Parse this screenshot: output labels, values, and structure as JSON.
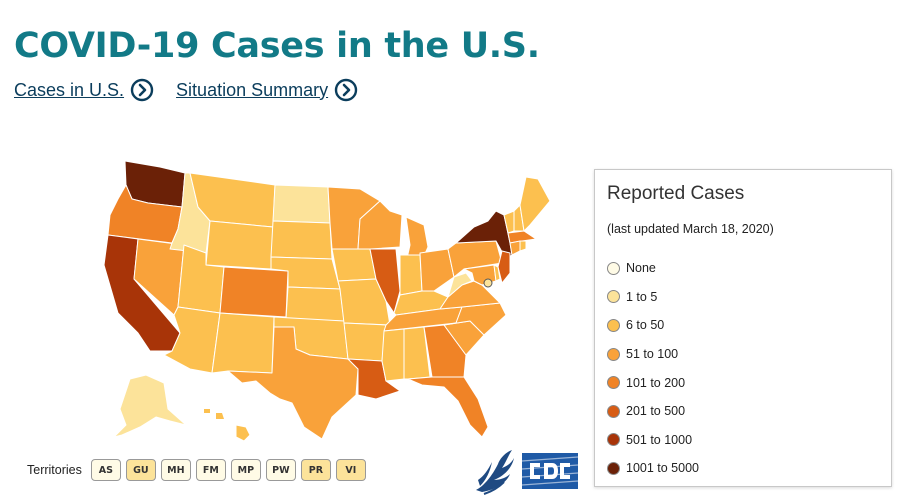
{
  "header": {
    "title": "COVID-19 Cases in the U.S.",
    "links": [
      {
        "label": "Cases in U.S."
      },
      {
        "label": "Situation Summary"
      }
    ]
  },
  "legend": {
    "title": "Reported Cases",
    "updated": "(last updated March 18, 2020)",
    "items": [
      {
        "label": "None",
        "color": "#fffbe6"
      },
      {
        "label": "1 to 5",
        "color": "#fce39a"
      },
      {
        "label": "6 to 50",
        "color": "#fcc04f"
      },
      {
        "label": "51 to 100",
        "color": "#f9a23a"
      },
      {
        "label": "101 to 200",
        "color": "#f08326"
      },
      {
        "label": "201 to 500",
        "color": "#d75c14"
      },
      {
        "label": "501 to 1000",
        "color": "#a83408"
      },
      {
        "label": "1001 to 5000",
        "color": "#6b2107"
      }
    ]
  },
  "territories": {
    "label": "Territories",
    "items": [
      {
        "code": "AS",
        "color": "#fffbe6"
      },
      {
        "code": "GU",
        "color": "#fce39a"
      },
      {
        "code": "MH",
        "color": "#fffbe6"
      },
      {
        "code": "FM",
        "color": "#fffbe6"
      },
      {
        "code": "MP",
        "color": "#fffbe6"
      },
      {
        "code": "PW",
        "color": "#fffbe6"
      },
      {
        "code": "PR",
        "color": "#fce39a"
      },
      {
        "code": "VI",
        "color": "#fce39a"
      }
    ]
  },
  "map": {
    "states": [
      {
        "id": "WA",
        "level": 7
      },
      {
        "id": "OR",
        "level": 4
      },
      {
        "id": "CA",
        "level": 6
      },
      {
        "id": "ID",
        "level": 1
      },
      {
        "id": "NV",
        "level": 3
      },
      {
        "id": "AZ",
        "level": 2
      },
      {
        "id": "UT",
        "level": 2
      },
      {
        "id": "MT",
        "level": 2
      },
      {
        "id": "WY",
        "level": 2
      },
      {
        "id": "CO",
        "level": 4
      },
      {
        "id": "NM",
        "level": 2
      },
      {
        "id": "ND",
        "level": 1
      },
      {
        "id": "SD",
        "level": 2
      },
      {
        "id": "NE",
        "level": 2
      },
      {
        "id": "KS",
        "level": 2
      },
      {
        "id": "OK",
        "level": 2
      },
      {
        "id": "TX",
        "level": 3
      },
      {
        "id": "MN",
        "level": 3
      },
      {
        "id": "IA",
        "level": 2
      },
      {
        "id": "MO",
        "level": 2
      },
      {
        "id": "AR",
        "level": 2
      },
      {
        "id": "LA",
        "level": 5
      },
      {
        "id": "WI",
        "level": 3
      },
      {
        "id": "IL",
        "level": 5
      },
      {
        "id": "MI",
        "level": 3
      },
      {
        "id": "IN",
        "level": 2
      },
      {
        "id": "OH",
        "level": 3
      },
      {
        "id": "KY",
        "level": 2
      },
      {
        "id": "TN",
        "level": 3
      },
      {
        "id": "MS",
        "level": 2
      },
      {
        "id": "AL",
        "level": 2
      },
      {
        "id": "GA",
        "level": 4
      },
      {
        "id": "FL",
        "level": 4
      },
      {
        "id": "SC",
        "level": 3
      },
      {
        "id": "NC",
        "level": 3
      },
      {
        "id": "VA",
        "level": 3
      },
      {
        "id": "WV",
        "level": 1
      },
      {
        "id": "PA",
        "level": 3
      },
      {
        "id": "NY",
        "level": 7
      },
      {
        "id": "NJ",
        "level": 5
      },
      {
        "id": "DE",
        "level": 2
      },
      {
        "id": "MD",
        "level": 3
      },
      {
        "id": "VT",
        "level": 2
      },
      {
        "id": "NH",
        "level": 2
      },
      {
        "id": "ME",
        "level": 2
      },
      {
        "id": "MA",
        "level": 4
      },
      {
        "id": "CT",
        "level": 3
      },
      {
        "id": "RI",
        "level": 2
      },
      {
        "id": "AK",
        "level": 1
      },
      {
        "id": "HI",
        "level": 2
      }
    ]
  }
}
